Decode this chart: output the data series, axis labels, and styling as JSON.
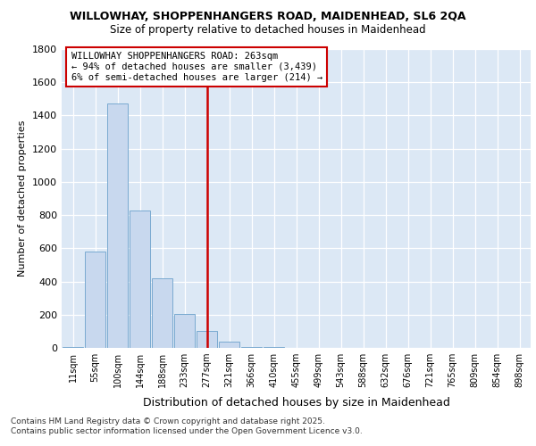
{
  "title1": "WILLOWHAY, SHOPPENHANGERS ROAD, MAIDENHEAD, SL6 2QA",
  "title2": "Size of property relative to detached houses in Maidenhead",
  "xlabel": "Distribution of detached houses by size in Maidenhead",
  "ylabel": "Number of detached properties",
  "categories": [
    "11sqm",
    "55sqm",
    "100sqm",
    "144sqm",
    "188sqm",
    "233sqm",
    "277sqm",
    "321sqm",
    "366sqm",
    "410sqm",
    "455sqm",
    "499sqm",
    "543sqm",
    "588sqm",
    "632sqm",
    "676sqm",
    "721sqm",
    "765sqm",
    "809sqm",
    "854sqm",
    "898sqm"
  ],
  "values": [
    5,
    580,
    1470,
    830,
    420,
    205,
    100,
    35,
    5,
    3,
    0,
    0,
    0,
    0,
    0,
    0,
    0,
    0,
    0,
    0,
    0
  ],
  "bar_color": "#c8d8ee",
  "bar_edge_color": "#7aaad0",
  "vline_x": 6,
  "vline_color": "#cc0000",
  "annotation_text": "WILLOWHAY SHOPPENHANGERS ROAD: 263sqm\n← 94% of detached houses are smaller (3,439)\n6% of semi-detached houses are larger (214) →",
  "annotation_box_color": "#ffffff",
  "annotation_box_edge": "#cc0000",
  "ylim": [
    0,
    1800
  ],
  "yticks": [
    0,
    200,
    400,
    600,
    800,
    1000,
    1200,
    1400,
    1600,
    1800
  ],
  "bg_color": "#dce8f5",
  "footer1": "Contains HM Land Registry data © Crown copyright and database right 2025.",
  "footer2": "Contains public sector information licensed under the Open Government Licence v3.0."
}
